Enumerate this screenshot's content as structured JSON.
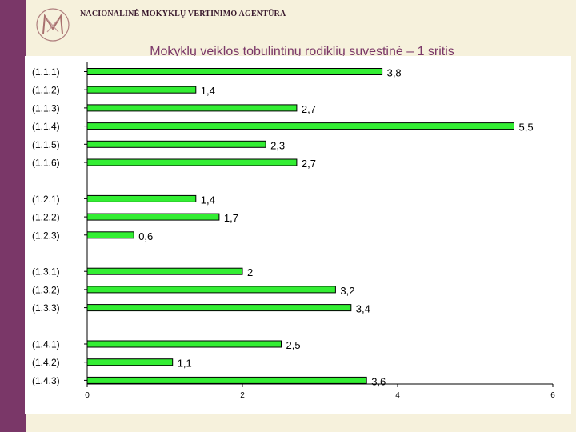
{
  "header": {
    "agency_name": "NACIONALINĖ MOKYKLŲ VERTINIMO AGENTŪRA",
    "logo_icon": "nmva-logo-icon"
  },
  "slide": {
    "title": "Mokyklų veiklos tobulintinų rodiklių suvestinė – 1 sritis"
  },
  "colors": {
    "side_bar": "#7a3768",
    "background": "#f6f1dc",
    "bar_fill": "#33ee33",
    "bar_stroke": "#000000",
    "title": "#7a3768"
  },
  "chart_data": {
    "type": "bar",
    "orientation": "horizontal",
    "title": "",
    "xlabel": "",
    "ylabel": "",
    "xlim": [
      0,
      6
    ],
    "x_ticks": [
      "0",
      "2",
      "4",
      "6"
    ],
    "grid": false,
    "legend": "none",
    "categories": [
      "(1.1.1)",
      "(1.1.2)",
      "(1.1.3)",
      "(1.1.4)",
      "(1.1.5)",
      "(1.1.6)",
      "",
      "(1.2.1)",
      "(1.2.2)",
      "(1.2.3)",
      "",
      "(1.3.1)",
      "(1.3.2)",
      "(1.3.3)",
      "",
      "(1.4.1)",
      "(1.4.2)",
      "(1.4.3)"
    ],
    "values": [
      3.8,
      1.4,
      2.7,
      5.5,
      2.3,
      2.7,
      null,
      1.4,
      1.7,
      0.6,
      null,
      2,
      3.2,
      3.4,
      null,
      2.5,
      1.1,
      3.6
    ],
    "data_labels": [
      "3,8",
      "1,4",
      "2,7",
      "5,5",
      "2,3",
      "2,7",
      "",
      "1,4",
      "1,7",
      "0,6",
      "",
      "2",
      "3,2",
      "3,4",
      "",
      "2,5",
      "1,1",
      "3,6"
    ]
  }
}
